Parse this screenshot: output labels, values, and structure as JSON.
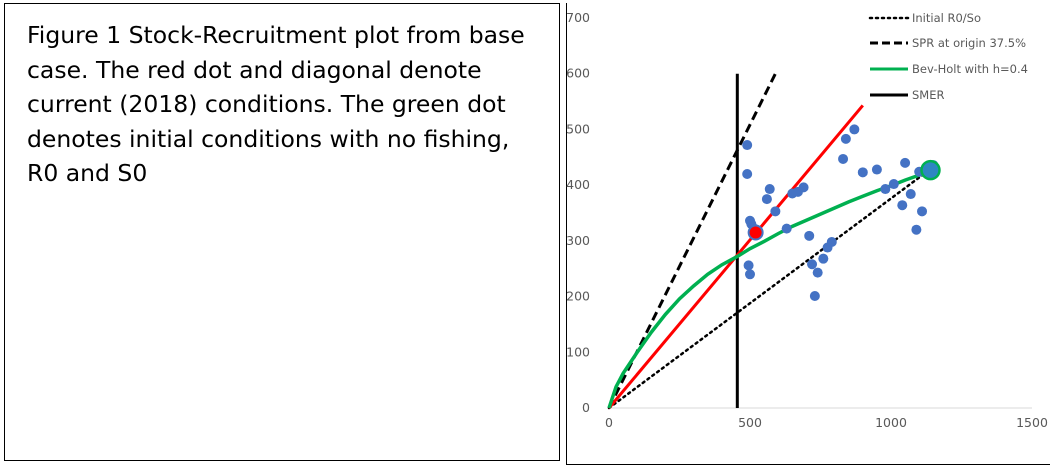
{
  "caption": "Figure 1 Stock-Recruitment plot from base case. The red dot and diagonal denote current (2018) conditions. The green dot denotes initial conditions with no fishing, R0 and S0",
  "colors": {
    "observed": "#4472c4",
    "current": "#ff0000",
    "bevholt": "#00b050",
    "black": "#000000",
    "axis": "#d9d9d9",
    "tick_text": "#595959"
  },
  "chart_data": {
    "type": "scatter",
    "title": "",
    "xlabel": "",
    "ylabel": "",
    "xlim": [
      0,
      1500
    ],
    "ylim": [
      0,
      700
    ],
    "x_ticks": [
      0,
      500,
      1000,
      1500
    ],
    "y_ticks": [
      0,
      100,
      200,
      300,
      400,
      500,
      600,
      700
    ],
    "grid": false,
    "legend_position": "top-right",
    "legend": [
      {
        "label": "Initial R0/So",
        "style": "dotted",
        "color": "#000000"
      },
      {
        "label": "SPR at origin 37.5%",
        "style": "dashed",
        "color": "#000000"
      },
      {
        "label": "Bev-Holt with h=0.4",
        "style": "solid",
        "color": "#00b050"
      },
      {
        "label": "SMER",
        "style": "solid",
        "color": "#000000"
      }
    ],
    "lines": {
      "initial_r0_s0": {
        "x": [
          0,
          1130
        ],
        "y": [
          0,
          425
        ]
      },
      "spr_origin": {
        "x": [
          0,
          590
        ],
        "y": [
          0,
          600
        ]
      },
      "smer": {
        "x": [
          455,
          455
        ],
        "y": [
          0,
          600
        ]
      },
      "current_diagonal": {
        "x": [
          0,
          900
        ],
        "y": [
          0,
          543
        ]
      },
      "bev_holt": {
        "x": [
          0,
          25,
          50,
          100,
          150,
          200,
          250,
          300,
          350,
          400,
          455,
          500,
          550,
          600,
          650,
          700,
          750,
          800,
          850,
          900,
          950,
          1000,
          1050,
          1100,
          1130
        ],
        "y": [
          0,
          38,
          62,
          100,
          136,
          168,
          196,
          219,
          240,
          257,
          272,
          286,
          299,
          313,
          326,
          337,
          348,
          359,
          370,
          380,
          390,
          399,
          409,
          418,
          425
        ]
      }
    },
    "observed_points": {
      "x": [
        490,
        490,
        500,
        505,
        515,
        560,
        570,
        590,
        630,
        650,
        670,
        690,
        710,
        720,
        730,
        740,
        760,
        775,
        790,
        830,
        840,
        870,
        900,
        950,
        980,
        1010,
        1040,
        1050,
        1070,
        1090,
        1100,
        1110,
        1150,
        495,
        500
      ],
      "y": [
        472,
        420,
        336,
        330,
        322,
        375,
        393,
        353,
        322,
        385,
        388,
        396,
        309,
        258,
        201,
        243,
        268,
        288,
        298,
        447,
        483,
        500,
        423,
        428,
        393,
        402,
        364,
        440,
        384,
        320,
        424,
        353,
        436,
        256,
        240
      ]
    },
    "current_point": {
      "x": 520,
      "y": 315
    },
    "initial_point": {
      "x": 1140,
      "y": 427
    }
  }
}
